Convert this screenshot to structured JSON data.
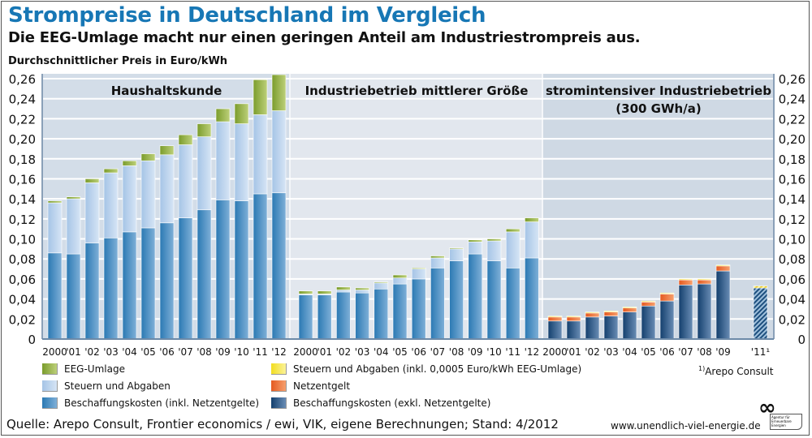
{
  "title": "Strompreise in Deutschland im Vergleich",
  "subtitle": "Die EEG-Umlage macht nur einen geringen Anteil am Industriestrompreis aus.",
  "unit_label": "Durchschnittlicher Preis in Euro/kWh",
  "footnote": {
    "marker": "1)",
    "text": "Arepo Consult"
  },
  "source": "Quelle: Arepo Consult, Frontier economics / ewi, VIK, eigene Berechnungen; Stand: 4/2012",
  "website": "www.unendlich-viel-energie.de",
  "logo_text": "Agentur für Erneuerbare Energien",
  "colors": {
    "eeg": "#8aaa3a",
    "steuern_light": "#b3cde9",
    "beschaffung_inkl": "#3b87bd",
    "steuern_yellow": "#f3e53a",
    "netzentgelt": "#e8652a",
    "beschaffung_exkl": "#1d4f7e",
    "panel1": "#d9e1ea",
    "panel2": "#e3e8ef",
    "panel3": "#ccd6e2",
    "title": "#1777b5"
  },
  "legend": {
    "left": [
      {
        "key": "eeg",
        "label": "EEG-Umlage"
      },
      {
        "key": "steuern_light",
        "label": "Steuern und Abgaben"
      },
      {
        "key": "beschaffung_inkl",
        "label": "Beschaffungskosten (inkl. Netzentgelte)"
      }
    ],
    "right": [
      {
        "key": "steuern_yellow",
        "label": "Steuern und Abgaben (inkl. 0,0005 Euro/kWh EEG-Umlage)"
      },
      {
        "key": "netzentgelt",
        "label": "Netzentgelt"
      },
      {
        "key": "beschaffung_exkl",
        "label": "Beschaffungskosten (exkl. Netzentgelte)"
      }
    ]
  },
  "chart_data": {
    "type": "bar",
    "stacked": true,
    "title": "Strompreise in Deutschland im Vergleich",
    "ylabel": "Durchschnittlicher Preis in Euro/kWh",
    "ylim": [
      0,
      0.26
    ],
    "yticks": [
      "0",
      "0,02",
      "0,04",
      "0,06",
      "0,08",
      "0,10",
      "0,12",
      "0,14",
      "0,16",
      "0,18",
      "0,20",
      "0,22",
      "0,24",
      "0,26"
    ],
    "grid": true,
    "legend_position": "bottom",
    "panels": [
      {
        "name": "Haushaltskunde",
        "categories": [
          "2000",
          "'01",
          "'02",
          "'03",
          "'04",
          "'05",
          "'06",
          "'07",
          "'08",
          "'09",
          "'10",
          "'11",
          "'12"
        ],
        "series": [
          {
            "name": "Beschaffungskosten (inkl. Netzentgelte)",
            "key": "beschaffung_inkl",
            "values": [
              0.086,
              0.085,
              0.096,
              0.101,
              0.107,
              0.111,
              0.116,
              0.121,
              0.129,
              0.139,
              0.138,
              0.145,
              0.146
            ]
          },
          {
            "name": "Steuern und Abgaben",
            "key": "steuern_light",
            "values": [
              0.05,
              0.055,
              0.06,
              0.065,
              0.066,
              0.067,
              0.068,
              0.073,
              0.073,
              0.078,
              0.077,
              0.079,
              0.082
            ]
          },
          {
            "name": "EEG-Umlage",
            "key": "eeg",
            "values": [
              0.002,
              0.002,
              0.004,
              0.004,
              0.005,
              0.007,
              0.009,
              0.01,
              0.013,
              0.013,
              0.02,
              0.035,
              0.036
            ]
          }
        ]
      },
      {
        "name": "Industriebetrieb mittlerer Größe",
        "categories": [
          "2000",
          "'01",
          "'02",
          "'03",
          "'04",
          "'05",
          "'06",
          "'07",
          "'08",
          "'09",
          "'10",
          "'11",
          "'12"
        ],
        "series": [
          {
            "name": "Beschaffungskosten (inkl. Netzentgelte)",
            "key": "beschaffung_inkl",
            "values": [
              0.044,
              0.044,
              0.047,
              0.046,
              0.05,
              0.055,
              0.06,
              0.071,
              0.078,
              0.085,
              0.078,
              0.071,
              0.081
            ]
          },
          {
            "name": "Steuern und Abgaben",
            "key": "steuern_light",
            "values": [
              0.001,
              0.001,
              0.002,
              0.003,
              0.006,
              0.006,
              0.01,
              0.01,
              0.012,
              0.012,
              0.02,
              0.036,
              0.036
            ]
          },
          {
            "name": "EEG-Umlage",
            "key": "eeg",
            "values": [
              0.003,
              0.003,
              0.003,
              0.002,
              0.001,
              0.003,
              0.001,
              0.002,
              0.001,
              0.002,
              0.002,
              0.003,
              0.004
            ]
          }
        ]
      },
      {
        "name": "stromintensiver Industriebetrieb",
        "name_line2": "(300 GWh/a)",
        "categories": [
          "2000",
          "'01",
          "'02",
          "'03",
          "'04",
          "'05",
          "'06",
          "'07",
          "'08",
          "'09",
          "",
          "'11"
        ],
        "footnote_category": "'11",
        "series": [
          {
            "name": "Beschaffungskosten (exkl. Netzentgelte)",
            "key": "beschaffung_exkl",
            "values": [
              0.018,
              0.018,
              0.022,
              0.023,
              0.027,
              0.033,
              0.038,
              0.054,
              0.055,
              0.068,
              null,
              0.051
            ]
          },
          {
            "name": "Netzentgelt",
            "key": "netzentgelt",
            "values": [
              0.004,
              0.004,
              0.004,
              0.004,
              0.004,
              0.004,
              0.007,
              0.005,
              0.004,
              0.005,
              null,
              0
            ]
          },
          {
            "name": "Steuern und Abgaben (inkl. 0,0005 Euro/kWh EEG-Umlage)",
            "key": "steuern_yellow",
            "values": [
              0.001,
              0.001,
              0.001,
              0.001,
              0.001,
              0.001,
              0.001,
              0.001,
              0.001,
              0.001,
              null,
              0.002
            ]
          }
        ]
      }
    ]
  }
}
